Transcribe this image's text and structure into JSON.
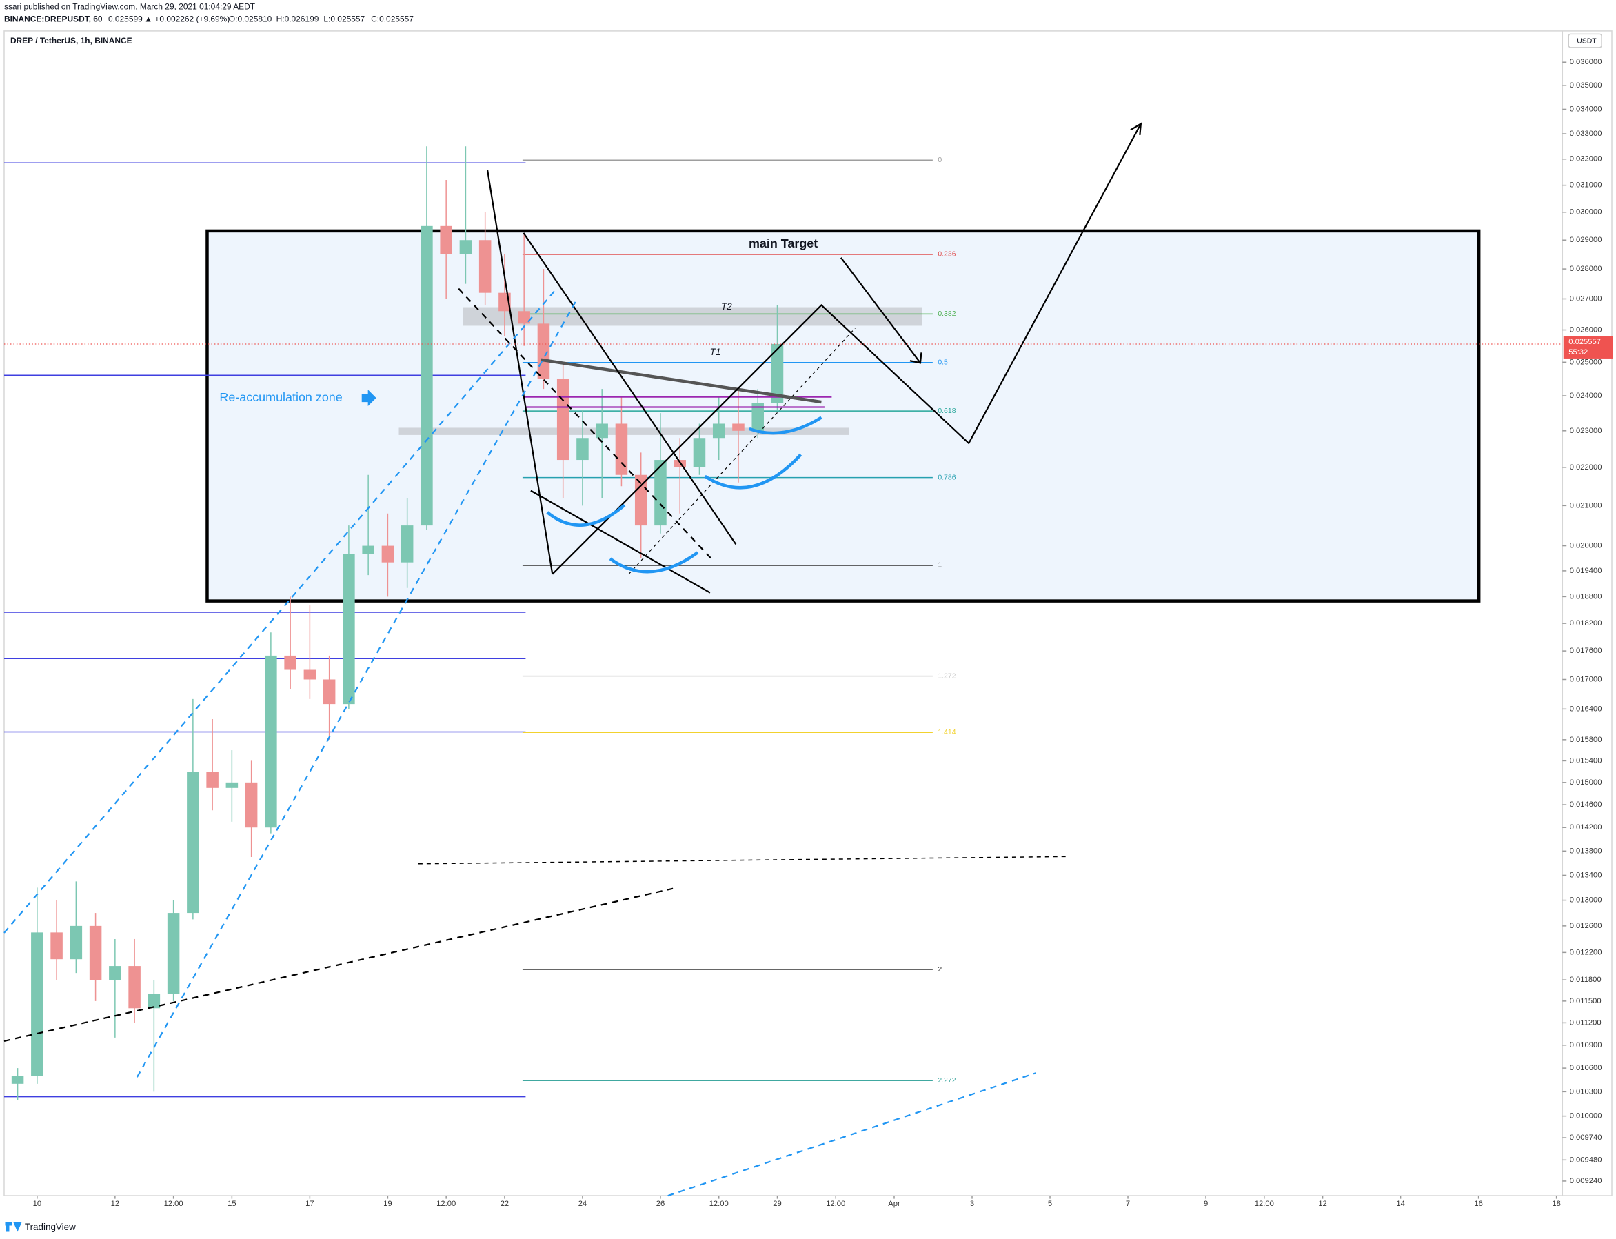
{
  "header": {
    "publisher": "ssari published on TradingView.com, March 29, 2021 01:04:29 AEDT",
    "symbol": "BINANCE:DREPUSDT, 60",
    "price": "0.025599",
    "change": "▲ +0.002262 (+9.69%)",
    "open": "O:0.025810",
    "high": "H:0.026199",
    "low": "L:0.025557",
    "close": "C:0.025557"
  },
  "chart_data": {
    "type": "candlestick",
    "title": "DREP / TetherUS, 1h, BINANCE",
    "currency": "USDT",
    "x": [
      9.5,
      10,
      10.5,
      11,
      11.5,
      12,
      12.5,
      13,
      13.5,
      14,
      14.5,
      15,
      15.5,
      16,
      16.5,
      17,
      17.5,
      18,
      18.5,
      19,
      19.5,
      20,
      20.5,
      21,
      21.5,
      22,
      22.5,
      23,
      23.5,
      24,
      24.5,
      25,
      25.5,
      26,
      26.5,
      27,
      27.5,
      28,
      28.5,
      29
    ],
    "open": [
      0.0104,
      0.0105,
      0.0125,
      0.0121,
      0.0126,
      0.0118,
      0.012,
      0.0114,
      0.0116,
      0.0128,
      0.0152,
      0.0149,
      0.015,
      0.0142,
      0.0175,
      0.0172,
      0.017,
      0.0165,
      0.0198,
      0.02,
      0.0196,
      0.0205,
      0.0295,
      0.0285,
      0.029,
      0.0272,
      0.0266,
      0.0262,
      0.0245,
      0.0222,
      0.0228,
      0.0232,
      0.0218,
      0.0205,
      0.0222,
      0.022,
      0.0228,
      0.0232,
      0.023,
      0.0238
    ],
    "high": [
      0.0106,
      0.0132,
      0.013,
      0.0133,
      0.0128,
      0.0124,
      0.0124,
      0.0118,
      0.013,
      0.0166,
      0.0162,
      0.0156,
      0.0154,
      0.018,
      0.0188,
      0.0186,
      0.0175,
      0.0205,
      0.0218,
      0.0208,
      0.0212,
      0.0325,
      0.0312,
      0.0325,
      0.03,
      0.0285,
      0.0292,
      0.028,
      0.025,
      0.0236,
      0.0242,
      0.024,
      0.0224,
      0.0235,
      0.0228,
      0.0232,
      0.024,
      0.0242,
      0.0242,
      0.0268
    ],
    "low": [
      0.0102,
      0.0104,
      0.0118,
      0.0119,
      0.0115,
      0.011,
      0.0112,
      0.0103,
      0.0115,
      0.0127,
      0.0145,
      0.0143,
      0.0137,
      0.0141,
      0.0168,
      0.0166,
      0.0158,
      0.0164,
      0.0193,
      0.0188,
      0.019,
      0.0204,
      0.027,
      0.0275,
      0.0268,
      0.0258,
      0.0255,
      0.0242,
      0.0212,
      0.021,
      0.0212,
      0.0215,
      0.0197,
      0.0203,
      0.0208,
      0.0218,
      0.0222,
      0.0216,
      0.0228,
      0.0236
    ],
    "close": [
      0.0105,
      0.0125,
      0.0121,
      0.0126,
      0.0118,
      0.012,
      0.0114,
      0.0116,
      0.0128,
      0.0152,
      0.0149,
      0.015,
      0.0142,
      0.0175,
      0.0172,
      0.017,
      0.0165,
      0.0198,
      0.02,
      0.0196,
      0.0205,
      0.0295,
      0.0285,
      0.029,
      0.0272,
      0.0266,
      0.0262,
      0.0245,
      0.0222,
      0.0228,
      0.0232,
      0.0218,
      0.0205,
      0.0222,
      0.022,
      0.0228,
      0.0232,
      0.023,
      0.0238,
      0.02556
    ],
    "up_color": "#7cc7b2",
    "down_color": "#ee9292",
    "log_scale": true,
    "grid": false,
    "xlim": [
      9.153,
      49.153
    ],
    "ylim": [
      0.0091,
      0.03716
    ],
    "xticks": [
      10,
      12,
      {
        "value": 13.5,
        "label": "12:00"
      },
      15,
      17,
      19,
      {
        "value": 20.5,
        "label": "12:00"
      },
      22,
      24,
      26,
      {
        "value": 27.5,
        "label": "12:00"
      },
      29,
      {
        "value": 30.5,
        "label": "12:00"
      },
      {
        "value": 32,
        "label": "Apr"
      },
      {
        "value": 34,
        "label": "3"
      },
      {
        "value": 36,
        "label": "5"
      },
      {
        "value": 38,
        "label": "7"
      },
      {
        "value": 40,
        "label": "9"
      },
      {
        "value": 41.5,
        "label": "12:00"
      },
      {
        "value": 43,
        "label": "12"
      },
      {
        "value": 45,
        "label": "14"
      },
      {
        "value": 47,
        "label": "16"
      },
      {
        "value": 49,
        "label": "18"
      }
    ],
    "yticks": [
      {
        "value": 0.036,
        "label": "0.036000"
      },
      {
        "value": 0.035,
        "label": "0.035000"
      },
      {
        "value": 0.034,
        "label": "0.034000"
      },
      {
        "value": 0.033,
        "label": "0.033000"
      },
      {
        "value": 0.032,
        "label": "0.032000"
      },
      {
        "value": 0.031,
        "label": "0.031000"
      },
      {
        "value": 0.03,
        "label": "0.030000"
      },
      {
        "value": 0.029,
        "label": "0.029000"
      },
      {
        "value": 0.028,
        "label": "0.028000"
      },
      {
        "value": 0.027,
        "label": "0.027000"
      },
      {
        "value": 0.026,
        "label": "0.026000"
      },
      {
        "value": 0.025,
        "label": "0.025000"
      },
      {
        "value": 0.024,
        "label": "0.024000"
      },
      {
        "value": 0.023,
        "label": "0.023000"
      },
      {
        "value": 0.022,
        "label": "0.022000"
      },
      {
        "value": 0.021,
        "label": "0.021000"
      },
      {
        "value": 0.02,
        "label": "0.020000"
      },
      {
        "value": 0.0194,
        "label": "0.019400"
      },
      {
        "value": 0.0188,
        "label": "0.018800"
      },
      {
        "value": 0.0182,
        "label": "0.018200"
      },
      {
        "value": 0.0176,
        "label": "0.017600"
      },
      {
        "value": 0.017,
        "label": "0.017000"
      },
      {
        "value": 0.0164,
        "label": "0.016400"
      },
      {
        "value": 0.0158,
        "label": "0.015800"
      },
      {
        "value": 0.0154,
        "label": "0.015400"
      },
      {
        "value": 0.015,
        "label": "0.015000"
      },
      {
        "value": 0.0146,
        "label": "0.014600"
      },
      {
        "value": 0.0142,
        "label": "0.014200"
      },
      {
        "value": 0.0138,
        "label": "0.013800"
      },
      {
        "value": 0.0134,
        "label": "0.013400"
      },
      {
        "value": 0.013,
        "label": "0.013000"
      },
      {
        "value": 0.0126,
        "label": "0.012600"
      },
      {
        "value": 0.0122,
        "label": "0.012200"
      },
      {
        "value": 0.0118,
        "label": "0.011800"
      },
      {
        "value": 0.0115,
        "label": "0.011500"
      },
      {
        "value": 0.0112,
        "label": "0.011200"
      },
      {
        "value": 0.0109,
        "label": "0.010900"
      },
      {
        "value": 0.0106,
        "label": "0.010600"
      },
      {
        "value": 0.0103,
        "label": "0.010300"
      },
      {
        "value": 0.01,
        "label": "0.010000"
      },
      {
        "value": 0.00974,
        "label": "0.009740"
      },
      {
        "value": 0.00948,
        "label": "0.009480"
      },
      {
        "value": 0.00924,
        "label": "0.009240"
      }
    ],
    "last_price": 0.025557,
    "last_price_color": "#ef5350",
    "countdown": "55:32",
    "fib_levels": [
      {
        "level": 0,
        "price": 0.03196,
        "color": "#9e9e9e"
      },
      {
        "level": 0.236,
        "price": 0.0285,
        "color": "#e05050"
      },
      {
        "level": 0.382,
        "price": 0.02651,
        "color": "#4caf50"
      },
      {
        "level": 0.5,
        "price": 0.02499,
        "color": "#2196f3"
      },
      {
        "level": 0.618,
        "price": 0.02356,
        "color": "#26a69a"
      },
      {
        "level": 0.786,
        "price": 0.02173,
        "color": "#26a0b0"
      },
      {
        "level": 1,
        "price": 0.01953,
        "color": "#333333"
      },
      {
        "level": 1.272,
        "price": 0.01707,
        "color": "#cccccc"
      },
      {
        "level": 1.414,
        "price": 0.01594,
        "color": "#f2d22e"
      },
      {
        "level": 2,
        "price": 0.01195,
        "color": "#333333"
      },
      {
        "level": 2.272,
        "price": 0.01044,
        "color": "#40a8a0"
      }
    ],
    "annotations": [
      "main Target",
      "T2",
      "T1",
      "Re-accumulation zone"
    ]
  },
  "footer": "TradingView"
}
